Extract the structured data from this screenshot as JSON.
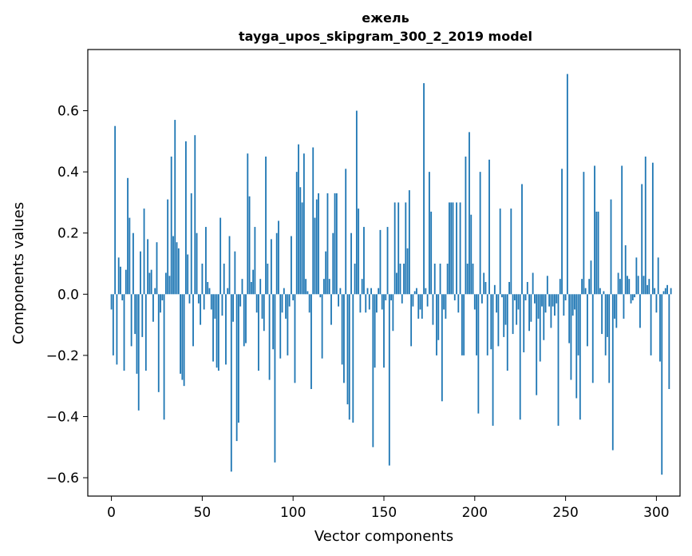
{
  "chart_data": {
    "type": "bar",
    "title": "ежель",
    "subtitle": "tayga_upos_skipgram_300_2_2019 model",
    "xlabel": "Vector components",
    "ylabel": "Components values",
    "xlim": [
      -13,
      313
    ],
    "ylim": [
      -0.66,
      0.8
    ],
    "xticks": [
      0,
      50,
      100,
      150,
      200,
      250,
      300
    ],
    "xtick_labels": [
      "0",
      "50",
      "100",
      "150",
      "200",
      "250",
      "300"
    ],
    "yticks": [
      -0.6,
      -0.4,
      -0.2,
      0.0,
      0.2,
      0.4,
      0.6
    ],
    "ytick_labels": [
      "−0.6",
      "−0.4",
      "−0.2",
      "0.0",
      "0.2",
      "0.4",
      "0.6"
    ],
    "bar_color": "#1f77b4",
    "grid": false,
    "values": [
      -0.05,
      -0.2,
      0.55,
      -0.23,
      0.12,
      0.09,
      -0.02,
      -0.25,
      0.08,
      0.38,
      0.25,
      -0.17,
      0.2,
      -0.13,
      -0.26,
      -0.38,
      0.14,
      -0.14,
      0.28,
      -0.25,
      0.18,
      0.07,
      0.08,
      -0.09,
      0.02,
      0.17,
      -0.32,
      -0.06,
      -0.02,
      -0.41,
      0.07,
      0.31,
      0.06,
      0.45,
      0.19,
      0.57,
      0.17,
      0.15,
      -0.26,
      -0.28,
      -0.3,
      0.5,
      0.13,
      -0.03,
      0.33,
      -0.17,
      0.52,
      0.2,
      -0.03,
      -0.1,
      0.1,
      -0.05,
      0.22,
      0.04,
      0.02,
      -0.05,
      -0.22,
      -0.08,
      -0.24,
      -0.25,
      0.25,
      -0.07,
      0.1,
      -0.23,
      0.02,
      0.19,
      -0.58,
      -0.09,
      0.14,
      -0.48,
      -0.42,
      -0.04,
      0.05,
      -0.17,
      -0.16,
      0.46,
      0.32,
      0.04,
      0.08,
      0.22,
      -0.06,
      -0.25,
      0.05,
      -0.08,
      -0.12,
      0.45,
      0.1,
      -0.28,
      0.18,
      -0.18,
      -0.55,
      0.2,
      0.24,
      -0.21,
      -0.06,
      0.02,
      -0.08,
      -0.2,
      -0.04,
      0.19,
      -0.02,
      -0.29,
      0.4,
      0.49,
      0.35,
      0.3,
      0.46,
      0.05,
      0.01,
      -0.06,
      -0.31,
      0.48,
      0.25,
      0.31,
      0.33,
      -0.01,
      -0.21,
      0.05,
      0.14,
      0.33,
      0.05,
      -0.1,
      0.2,
      0.33,
      0.33,
      -0.04,
      0.02,
      -0.23,
      -0.29,
      0.41,
      -0.36,
      -0.41,
      0.2,
      -0.42,
      0.1,
      0.6,
      0.28,
      -0.06,
      0.05,
      0.22,
      -0.06,
      0.02,
      -0.05,
      0.02,
      -0.5,
      -0.24,
      -0.06,
      0.02,
      0.21,
      -0.05,
      -0.24,
      -0.02,
      0.22,
      -0.56,
      -0.02,
      -0.12,
      0.3,
      0.07,
      0.3,
      0.1,
      -0.03,
      0.1,
      0.3,
      0.15,
      0.34,
      -0.17,
      -0.04,
      0.01,
      0.02,
      -0.08,
      -0.05,
      -0.08,
      0.69,
      0.02,
      -0.04,
      0.4,
      0.27,
      -0.1,
      0.1,
      -0.2,
      -0.15,
      0.1,
      -0.35,
      -0.05,
      -0.08,
      0.1,
      0.3,
      0.3,
      0.3,
      -0.02,
      0.3,
      -0.06,
      0.3,
      -0.2,
      -0.2,
      0.45,
      0.1,
      0.53,
      0.26,
      0.1,
      -0.05,
      -0.2,
      -0.39,
      0.4,
      -0.03,
      0.07,
      0.04,
      -0.2,
      0.44,
      -0.18,
      -0.43,
      0.03,
      -0.06,
      -0.17,
      0.28,
      -0.01,
      -0.14,
      -0.1,
      -0.25,
      0.04,
      0.28,
      -0.13,
      -0.02,
      -0.1,
      -0.05,
      -0.41,
      0.36,
      -0.19,
      -0.02,
      0.04,
      -0.12,
      -0.09,
      0.07,
      -0.03,
      -0.33,
      -0.08,
      -0.22,
      -0.04,
      -0.15,
      -0.06,
      0.06,
      -0.04,
      -0.11,
      -0.04,
      -0.07,
      -0.03,
      -0.43,
      0.05,
      0.41,
      -0.07,
      -0.02,
      0.72,
      -0.16,
      -0.28,
      -0.07,
      -0.05,
      -0.34,
      -0.2,
      -0.41,
      0.05,
      0.4,
      0.02,
      -0.17,
      0.05,
      0.11,
      -0.29,
      0.42,
      0.27,
      0.27,
      0.02,
      -0.13,
      0.01,
      -0.2,
      -0.14,
      -0.29,
      0.31,
      -0.51,
      -0.08,
      -0.11,
      0.07,
      0.05,
      0.42,
      -0.08,
      0.16,
      0.06,
      0.05,
      -0.03,
      -0.02,
      -0.01,
      0.12,
      0.06,
      -0.11,
      0.36,
      0.06,
      0.45,
      0.03,
      0.05,
      -0.2,
      0.43,
      0.02,
      -0.06,
      0.12,
      -0.22,
      -0.59,
      0.01,
      0.02,
      0.03,
      -0.31,
      0.02
    ]
  }
}
